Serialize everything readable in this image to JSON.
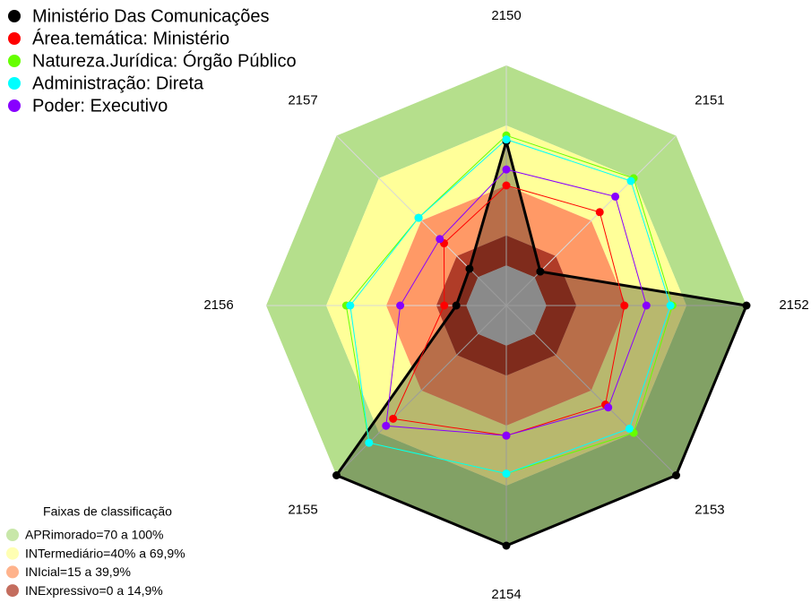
{
  "chart_data": {
    "type": "radar",
    "categories": [
      "2150",
      "2151",
      "2152",
      "2153",
      "2154",
      "2155",
      "2156",
      "2157"
    ],
    "rlim": [
      -20,
      100
    ],
    "series": [
      {
        "name": "Ministério Das Comunicações",
        "color": "#000000",
        "values": [
          62,
          4,
          100,
          100,
          100,
          100,
          5,
          6
        ]
      },
      {
        "name": "Área.temática: Ministério",
        "color": "#ff0000",
        "values": [
          40,
          46,
          39,
          50,
          45,
          60,
          11,
          24
        ]
      },
      {
        "name": "Natureza.Jurídica: Órgão Público",
        "color": "#66ff00",
        "values": [
          65,
          70,
          63,
          70,
          64,
          77,
          60,
          42
        ]
      },
      {
        "name": "Administração: Direta",
        "color": "#00ffff",
        "values": [
          63,
          68,
          62,
          67,
          64,
          77,
          58,
          42
        ]
      },
      {
        "name": "Poder: Executivo",
        "color": "#8800ff",
        "values": [
          48,
          57,
          50,
          52,
          45,
          65,
          33,
          27
        ]
      }
    ],
    "bands_title": "Faixas de classificação",
    "bands": [
      {
        "name": "APRimorado=70 a 100%",
        "from": 70,
        "to": 100,
        "color": "#b5df8c"
      },
      {
        "name": "INTermediário=40% a 69,9%",
        "from": 40,
        "to": 70,
        "color": "#ffff99"
      },
      {
        "name": "INIcial=15 a 39,9%",
        "from": 15,
        "to": 40,
        "color": "#ff9966"
      },
      {
        "name": "INExpressivo=0 a 14,9%",
        "from": 0,
        "to": 15,
        "color": "#b03c28"
      }
    ]
  }
}
